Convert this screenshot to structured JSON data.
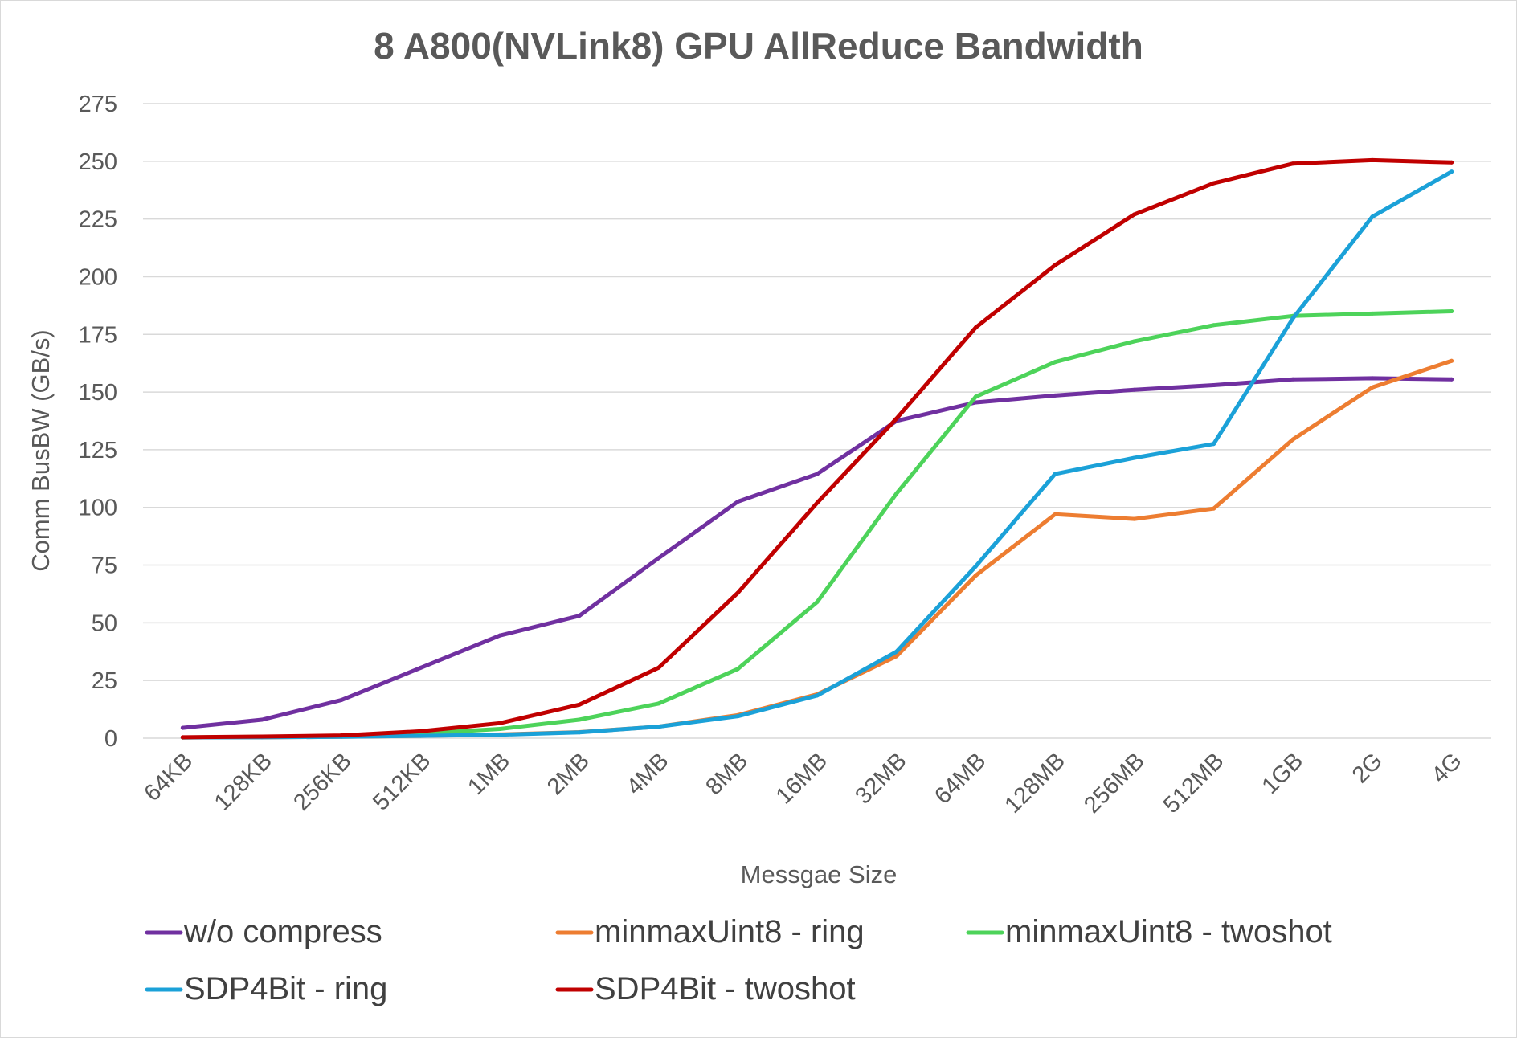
{
  "chart_data": {
    "type": "line",
    "title": "8 A800(NVLink8) GPU AllReduce Bandwidth",
    "xlabel": "Messgae Size",
    "ylabel": "Comm BusBW (GB/s)",
    "ylim": [
      0,
      275
    ],
    "yticks": [
      0,
      25,
      50,
      75,
      100,
      125,
      150,
      175,
      200,
      225,
      250,
      275
    ],
    "grid": true,
    "legend_position": "bottom",
    "categories": [
      "64KB",
      "128KB",
      "256KB",
      "512KB",
      "1MB",
      "2MB",
      "4MB",
      "8MB",
      "16MB",
      "32MB",
      "64MB",
      "128MB",
      "256MB",
      "512MB",
      "1GB",
      "2G",
      "4G"
    ],
    "series": [
      {
        "name": "w/o compress",
        "color": "#7030A0",
        "values": [
          4.5,
          8,
          16.5,
          30.5,
          44.5,
          53,
          78,
          102.5,
          114.5,
          137.5,
          145.5,
          148.5,
          151,
          153,
          155.5,
          156,
          155.5
        ]
      },
      {
        "name": "minmaxUint8 - ring",
        "color": "#ED7D31",
        "values": [
          0.3,
          0.4,
          0.6,
          1,
          1.6,
          2.6,
          5,
          10,
          19,
          35.5,
          70.5,
          97,
          95,
          99.5,
          129.5,
          152,
          163.5
        ]
      },
      {
        "name": "minmaxUint8 - twoshot",
        "color": "#4DD35A",
        "values": [
          0.3,
          0.6,
          1,
          2,
          4,
          8,
          15,
          30,
          59,
          106,
          148,
          163,
          172,
          179,
          183,
          184,
          185
        ]
      },
      {
        "name": "SDP4Bit - ring",
        "color": "#1BA1D8",
        "values": [
          0.3,
          0.4,
          0.6,
          1,
          1.5,
          2.5,
          5,
          9.5,
          18.5,
          37.5,
          74.5,
          114.5,
          121.5,
          127.5,
          182,
          226,
          245.5
        ]
      },
      {
        "name": "SDP4Bit - twoshot",
        "color": "#C00000",
        "values": [
          0.4,
          0.7,
          1.2,
          3,
          6.5,
          14.5,
          30.5,
          63,
          102,
          138.5,
          178,
          205,
          227,
          240.5,
          249,
          250.5,
          249.5
        ]
      }
    ]
  }
}
